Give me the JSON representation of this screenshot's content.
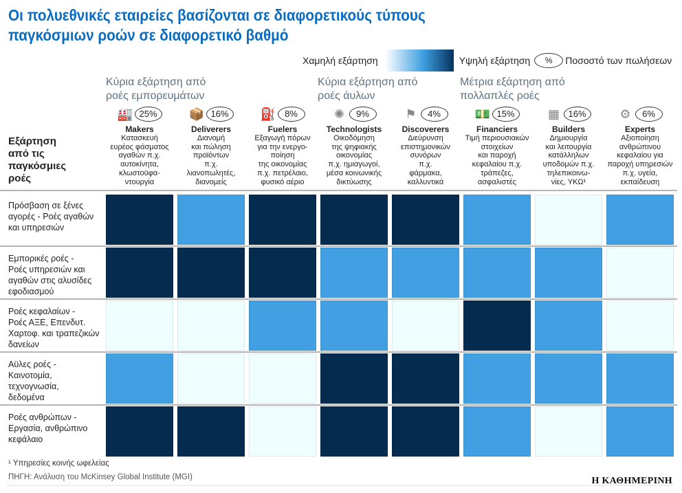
{
  "title_lines": [
    "Οι πολυεθνικές εταιρείες βασίζονται σε διαφορετικούς τύπους",
    "παγκόσμιων ροών σε διαφορετικό βαθμό"
  ],
  "legend": {
    "low": "Χαμηλή εξάρτηση",
    "high": "Υψηλή εξάρτηση",
    "pct_symbol": "%",
    "pct_label": "Ποσοστό των πωλήσεων"
  },
  "groups": [
    {
      "lines": [
        "Κύρια εξάρτηση από",
        "ροές εμπορευμάτων"
      ]
    },
    {
      "lines": [
        "Κύρια εξάρτηση από",
        "ροές άυλων"
      ]
    },
    {
      "lines": [
        "Μέτρια εξάρτηση από",
        "πολλαπλές ροές"
      ]
    }
  ],
  "row_header": [
    "Εξάρτηση",
    "από τις",
    "παγκόσμιες",
    "ροές"
  ],
  "colors": {
    "low": "#effeff",
    "medium": "#42a0e2",
    "high": "#052b4f"
  },
  "chart_data": {
    "type": "heatmap",
    "columns": [
      {
        "name": "Makers",
        "pct": "25%",
        "icon": "factory-icon",
        "glyph": "🏭",
        "desc": [
          "Κατασκευή",
          "ευρέος φάσματος",
          "αγαθών π.χ.",
          "αυτοκίνητα,",
          "κλωστοϋφα-",
          "ντουργία"
        ]
      },
      {
        "name": "Deliverers",
        "pct": "16%",
        "icon": "package-hand-icon",
        "glyph": "📦",
        "desc": [
          "Διανομή",
          "και πώληση",
          "προϊόντων",
          "π.χ.",
          "λιανοπωλητές,",
          "διανομείς"
        ]
      },
      {
        "name": "Fuelers",
        "pct": "8%",
        "icon": "fuel-can-icon",
        "glyph": "⛽",
        "desc": [
          "Εξαγωγή πόρων",
          "για την ενεργο-",
          "ποίηση",
          "της οικονομίας",
          "π.χ. πετρέλαιο,",
          "φυσικό αέριο"
        ]
      },
      {
        "name": "Technologists",
        "pct": "9%",
        "icon": "circuit-icon",
        "glyph": "✺",
        "desc": [
          "Οικοδόμηση",
          "της ψηφιακής",
          "οικονομίας",
          "π.χ. ημιαγωγοί,",
          "μέσα κοινωνικής",
          "δικτύωσης"
        ]
      },
      {
        "name": "Discoverers",
        "pct": "4%",
        "icon": "explorer-flag-icon",
        "glyph": "⚑",
        "desc": [
          "Διεύρυνση",
          "επιστημονικών",
          "συνόρων",
          "π.χ.",
          "φάρμακα,",
          "καλλυντικά"
        ]
      },
      {
        "name": "Financiers",
        "pct": "15%",
        "icon": "money-coins-icon",
        "glyph": "💵",
        "desc": [
          "Τιμή περιουσιακών",
          "στοιχείων",
          "και παροχή",
          "κεφαλαίου π.χ.",
          "τράπεζες,",
          "ασφαλιστές"
        ]
      },
      {
        "name": "Builders",
        "pct": "16%",
        "icon": "brick-wall-icon",
        "glyph": "▦",
        "desc": [
          "Δημιουργία",
          "και λειτουργία",
          "κατάλληλων",
          "υποδομών π.χ.",
          "τηλεπικοινω-",
          "νίες, ΥΚΩ¹"
        ]
      },
      {
        "name": "Experts",
        "pct": "6%",
        "icon": "gear-person-icon",
        "glyph": "⚙",
        "desc": [
          "Αξιοποίηση",
          "ανθρώπινου",
          "κεφαλαίου για",
          "παροχή υπηρεσιών",
          "π.χ. υγεία,",
          "εκπαίδευση"
        ]
      }
    ],
    "rows": [
      {
        "label": [
          "Πρόσβαση σε ξένες",
          "αγορές - Ροές αγαθών",
          "και υπηρεσιών"
        ],
        "levels": [
          "high",
          "medium",
          "high",
          "high",
          "high",
          "medium",
          "low",
          "medium"
        ]
      },
      {
        "label": [
          "Εμπορικές ροές -",
          "Ροές υπηρεσιών και",
          "αγαθών στις αλυσίδες",
          "εφοδιασμού"
        ],
        "levels": [
          "high",
          "high",
          "high",
          "medium",
          "medium",
          "medium",
          "medium",
          "low"
        ]
      },
      {
        "label": [
          "Ροές κεφαλαίων -",
          "Ροές ΑΞΕ, Επενδυτ.",
          "Χαρτοφ. και τραπεζικών",
          "δανείων"
        ],
        "levels": [
          "low",
          "low",
          "medium",
          "medium",
          "low",
          "high",
          "medium",
          "low"
        ]
      },
      {
        "label": [
          "Αϋλες ροές -",
          "Καινοτομία,",
          "τεχνογνωσία,",
          "δεδομένα"
        ],
        "levels": [
          "medium",
          "low",
          "low",
          "high",
          "high",
          "medium",
          "medium",
          "medium"
        ]
      },
      {
        "label": [
          "Ροές ανθρώπων -",
          "Εργασία, ανθρώπινο",
          "κεφάλαιο"
        ],
        "levels": [
          "high",
          "high",
          "low",
          "high",
          "high",
          "medium",
          "low",
          "medium"
        ]
      }
    ]
  },
  "footnote": "¹ Υπηρεσίες κοινής ωφελείας",
  "source": "ΠΗΓΗ: Ανάλυση του McKinsey Global Institute (MGI)",
  "logo": "Η ΚΑΘΗΜΕΡΙΝΗ"
}
